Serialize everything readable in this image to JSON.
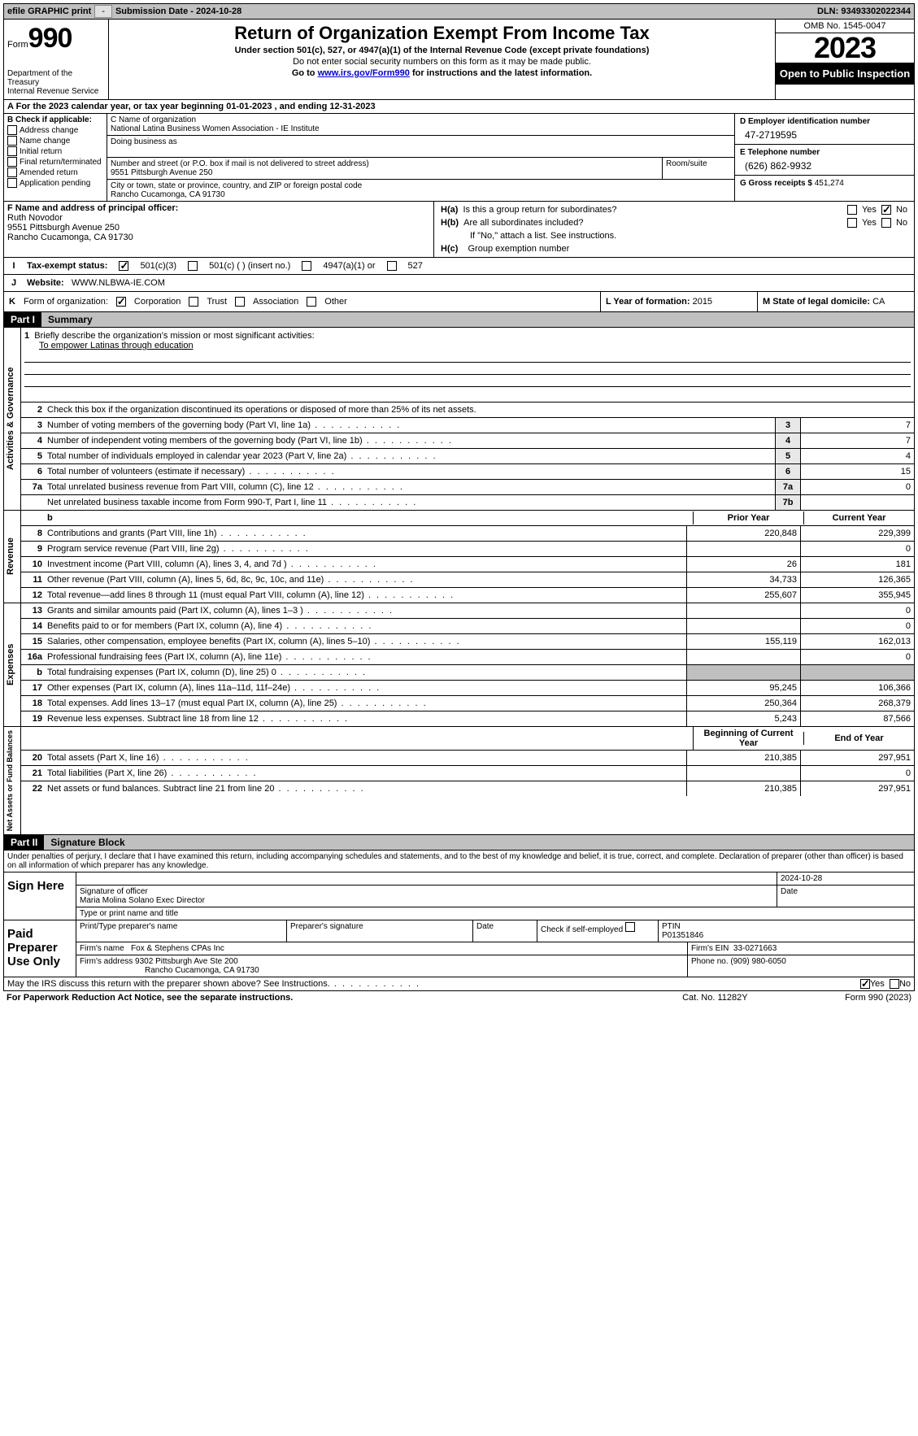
{
  "topbar": {
    "efile_label": "efile GRAPHIC print",
    "dash": "-",
    "submission_label": "Submission Date - 2024-10-28",
    "dln_label": "DLN: 93493302022344"
  },
  "header": {
    "form_word": "Form",
    "form_number": "990",
    "dept": "Department of the Treasury\nInternal Revenue Service",
    "title": "Return of Organization Exempt From Income Tax",
    "subtitle": "Under section 501(c), 527, or 4947(a)(1) of the Internal Revenue Code (except private foundations)",
    "note1": "Do not enter social security numbers on this form as it may be made public.",
    "note2_pre": "Go to ",
    "note2_link": "www.irs.gov/Form990",
    "note2_post": " for instructions and the latest information.",
    "omb": "OMB No. 1545-0047",
    "year": "2023",
    "open_public": "Open to Public Inspection"
  },
  "line_a": "For the 2023 calendar year, or tax year beginning 01-01-2023   , and ending 12-31-2023",
  "box_b": {
    "title": "B Check if applicable:",
    "items": [
      "Address change",
      "Name change",
      "Initial return",
      "Final return/terminated",
      "Amended return",
      "Application pending"
    ]
  },
  "box_c": {
    "name_label": "C Name of organization",
    "name": "National Latina Business Women Association - IE Institute",
    "dba_label": "Doing business as",
    "addr_label": "Number and street (or P.O. box if mail is not delivered to street address)",
    "addr": "9551 Pittsburgh Avenue 250",
    "room_label": "Room/suite",
    "city_label": "City or town, state or province, country, and ZIP or foreign postal code",
    "city": "Rancho Cucamonga, CA  91730"
  },
  "box_d": {
    "label": "D Employer identification number",
    "value": "47-2719595"
  },
  "box_e": {
    "label": "E Telephone number",
    "value": "(626) 862-9932"
  },
  "box_g": {
    "label": "G Gross receipts $",
    "value": "451,274"
  },
  "box_f": {
    "label": "F  Name and address of principal officer:",
    "name": "Ruth Novodor",
    "addr1": "9551 Pittsburgh Avenue 250",
    "addr2": "Rancho Cucamonga, CA  91730"
  },
  "box_h": {
    "a_label": "H(a)  Is this a group return for subordinates?",
    "b_label": "H(b)  Are all subordinates included?",
    "b_note": "If \"No,\" attach a list. See instructions.",
    "c_label": "H(c)  Group exemption number",
    "yes": "Yes",
    "no": "No"
  },
  "box_i": {
    "label": "Tax-exempt status:",
    "o1": "501(c)(3)",
    "o2": "501(c) (  ) (insert no.)",
    "o3": "4947(a)(1) or",
    "o4": "527"
  },
  "box_j": {
    "label": "Website:",
    "value": "WWW.NLBWA-IE.COM"
  },
  "box_k": {
    "label": "Form of organization:",
    "items": [
      "Corporation",
      "Trust",
      "Association",
      "Other"
    ]
  },
  "box_l": {
    "label": "L Year of formation:",
    "value": "2015"
  },
  "box_m": {
    "label": "M State of legal domicile:",
    "value": "CA"
  },
  "part1": {
    "header": "Part I",
    "title": "Summary",
    "governance_label": "Activities & Governance",
    "revenue_label": "Revenue",
    "expenses_label": "Expenses",
    "netassets_label": "Net Assets or Fund Balances",
    "line1_label": "Briefly describe the organization's mission or most significant activities:",
    "line1_value": "To empower Latinas through education",
    "line2": "Check this box    if the organization discontinued its operations or disposed of more than 25% of its net assets.",
    "lines_gov": [
      {
        "n": "3",
        "t": "Number of voting members of the governing body (Part VI, line 1a)",
        "box": "3",
        "v": "7"
      },
      {
        "n": "4",
        "t": "Number of independent voting members of the governing body (Part VI, line 1b)",
        "box": "4",
        "v": "7"
      },
      {
        "n": "5",
        "t": "Total number of individuals employed in calendar year 2023 (Part V, line 2a)",
        "box": "5",
        "v": "4"
      },
      {
        "n": "6",
        "t": "Total number of volunteers (estimate if necessary)",
        "box": "6",
        "v": "15"
      },
      {
        "n": "7a",
        "t": "Total unrelated business revenue from Part VIII, column (C), line 12",
        "box": "7a",
        "v": "0"
      },
      {
        "n": "",
        "t": "Net unrelated business taxable income from Form 990-T, Part I, line 11",
        "box": "7b",
        "v": ""
      }
    ],
    "prior_label": "Prior Year",
    "current_label": "Current Year",
    "begin_label": "Beginning of Current Year",
    "end_label": "End of Year",
    "lines_rev": [
      {
        "n": "8",
        "t": "Contributions and grants (Part VIII, line 1h)",
        "p": "220,848",
        "c": "229,399"
      },
      {
        "n": "9",
        "t": "Program service revenue (Part VIII, line 2g)",
        "p": "",
        "c": "0"
      },
      {
        "n": "10",
        "t": "Investment income (Part VIII, column (A), lines 3, 4, and 7d )",
        "p": "26",
        "c": "181"
      },
      {
        "n": "11",
        "t": "Other revenue (Part VIII, column (A), lines 5, 6d, 8c, 9c, 10c, and 11e)",
        "p": "34,733",
        "c": "126,365"
      },
      {
        "n": "12",
        "t": "Total revenue—add lines 8 through 11 (must equal Part VIII, column (A), line 12)",
        "p": "255,607",
        "c": "355,945"
      }
    ],
    "lines_exp": [
      {
        "n": "13",
        "t": "Grants and similar amounts paid (Part IX, column (A), lines 1–3 )",
        "p": "",
        "c": "0"
      },
      {
        "n": "14",
        "t": "Benefits paid to or for members (Part IX, column (A), line 4)",
        "p": "",
        "c": "0"
      },
      {
        "n": "15",
        "t": "Salaries, other compensation, employee benefits (Part IX, column (A), lines 5–10)",
        "p": "155,119",
        "c": "162,013"
      },
      {
        "n": "16a",
        "t": "Professional fundraising fees (Part IX, column (A), line 11e)",
        "p": "",
        "c": "0"
      },
      {
        "n": "b",
        "t": "Total fundraising expenses (Part IX, column (D), line 25) 0",
        "p": "shaded",
        "c": "shaded"
      },
      {
        "n": "17",
        "t": "Other expenses (Part IX, column (A), lines 11a–11d, 11f–24e)",
        "p": "95,245",
        "c": "106,366"
      },
      {
        "n": "18",
        "t": "Total expenses. Add lines 13–17 (must equal Part IX, column (A), line 25)",
        "p": "250,364",
        "c": "268,379"
      },
      {
        "n": "19",
        "t": "Revenue less expenses. Subtract line 18 from line 12",
        "p": "5,243",
        "c": "87,566"
      }
    ],
    "lines_net": [
      {
        "n": "20",
        "t": "Total assets (Part X, line 16)",
        "p": "210,385",
        "c": "297,951"
      },
      {
        "n": "21",
        "t": "Total liabilities (Part X, line 26)",
        "p": "",
        "c": "0"
      },
      {
        "n": "22",
        "t": "Net assets or fund balances. Subtract line 21 from line 20",
        "p": "210,385",
        "c": "297,951"
      }
    ]
  },
  "part2": {
    "header": "Part II",
    "title": "Signature Block",
    "penalties": "Under penalties of perjury, I declare that I have examined this return, including accompanying schedules and statements, and to the best of my knowledge and belief, it is true, correct, and complete. Declaration of preparer (other than officer) is based on all information of which preparer has any knowledge."
  },
  "sign": {
    "label": "Sign Here",
    "sig_label": "Signature of officer",
    "date_label": "Date",
    "date_value": "2024-10-28",
    "officer": "Maria Molina Solano  Exec Director",
    "type_label": "Type or print name and title"
  },
  "preparer": {
    "label": "Paid Preparer Use Only",
    "name_label": "Print/Type preparer's name",
    "sig_label": "Preparer's signature",
    "date_label": "Date",
    "check_label": "Check    if self-employed",
    "ptin_label": "PTIN",
    "ptin": "P01351846",
    "firm_name_label": "Firm's name",
    "firm_name": "Fox & Stephens CPAs Inc",
    "firm_ein_label": "Firm's EIN",
    "firm_ein": "33-0271663",
    "firm_addr_label": "Firm's address",
    "firm_addr1": "9302 Pittsburgh Ave Ste 200",
    "firm_addr2": "Rancho Cucamonga, CA  91730",
    "phone_label": "Phone no.",
    "phone": "(909) 980-6050"
  },
  "discuss": {
    "text": "May the IRS discuss this return with the preparer shown above? See Instructions.",
    "yes": "Yes",
    "no": "No"
  },
  "footer": {
    "paperwork": "For Paperwork Reduction Act Notice, see the separate instructions.",
    "cat": "Cat. No. 11282Y",
    "form": "Form 990 (2023)"
  }
}
